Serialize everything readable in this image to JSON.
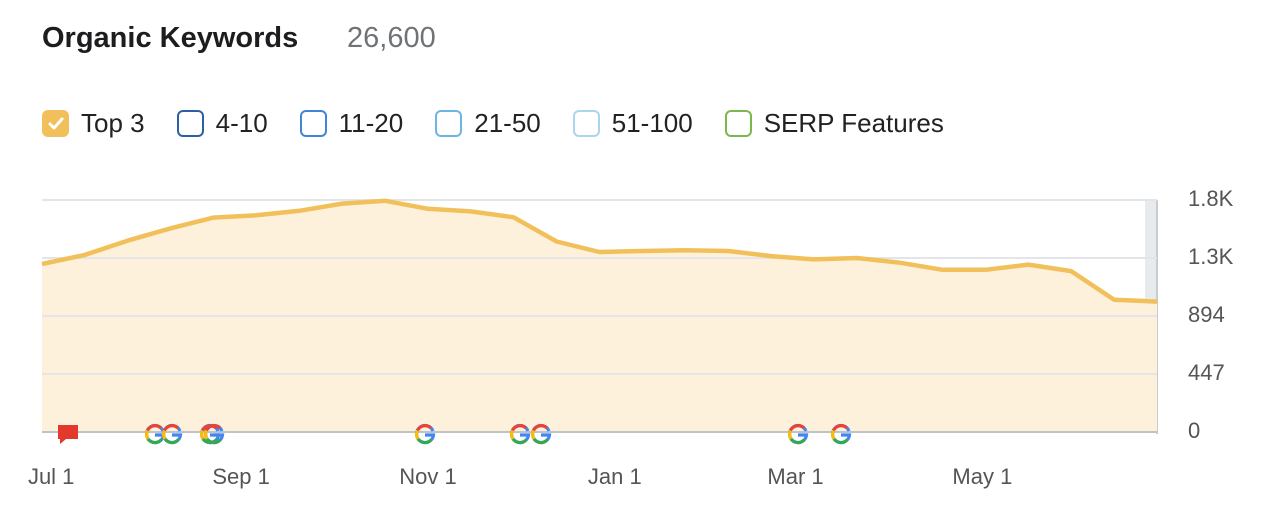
{
  "header": {
    "title": "Organic Keywords",
    "total": "26,600"
  },
  "chart_data": {
    "type": "area",
    "x": [
      "Jun 28",
      "Jul 12",
      "Jul 26",
      "Aug 9",
      "Aug 23",
      "Sep 6",
      "Sep 20",
      "Oct 4",
      "Oct 18",
      "Nov 1",
      "Nov 15",
      "Nov 29",
      "Dec 13",
      "Dec 27",
      "Jan 10",
      "Jan 24",
      "Feb 7",
      "Feb 21",
      "Mar 7",
      "Mar 21",
      "Apr 4",
      "Apr 18",
      "May 2",
      "May 16",
      "May 30",
      "Jun 13",
      "Jun 27"
    ],
    "series": [
      {
        "name": "Top 3",
        "color": "#f2c05a",
        "checked": true,
        "values": [
          1295,
          1365,
          1475,
          1570,
          1652,
          1670,
          1705,
          1760,
          1782,
          1720,
          1700,
          1655,
          1468,
          1387,
          1395,
          1400,
          1395,
          1356,
          1330,
          1341,
          1305,
          1250,
          1250,
          1290,
          1240,
          1020,
          1005
        ]
      }
    ],
    "inactive_series": [
      {
        "name": "4-10",
        "color": "#2f5fa3"
      },
      {
        "name": "11-20",
        "color": "#3f86d6"
      },
      {
        "name": "21-50",
        "color": "#6cb6e4"
      },
      {
        "name": "51-100",
        "color": "#a9d6ee"
      },
      {
        "name": "SERP Features",
        "color": "#79b84a"
      }
    ],
    "ylim": [
      0,
      1788
    ],
    "yticks": [
      0,
      447,
      894,
      {
        "value": 1341,
        "label": "1.3K"
      },
      {
        "value": 1788,
        "label": "1.8K"
      }
    ],
    "xticks": [
      "Sep 1",
      "Nov 1",
      "Jan 1",
      "Mar 1",
      "May 1",
      "Jul 1"
    ],
    "grid": true
  }
}
